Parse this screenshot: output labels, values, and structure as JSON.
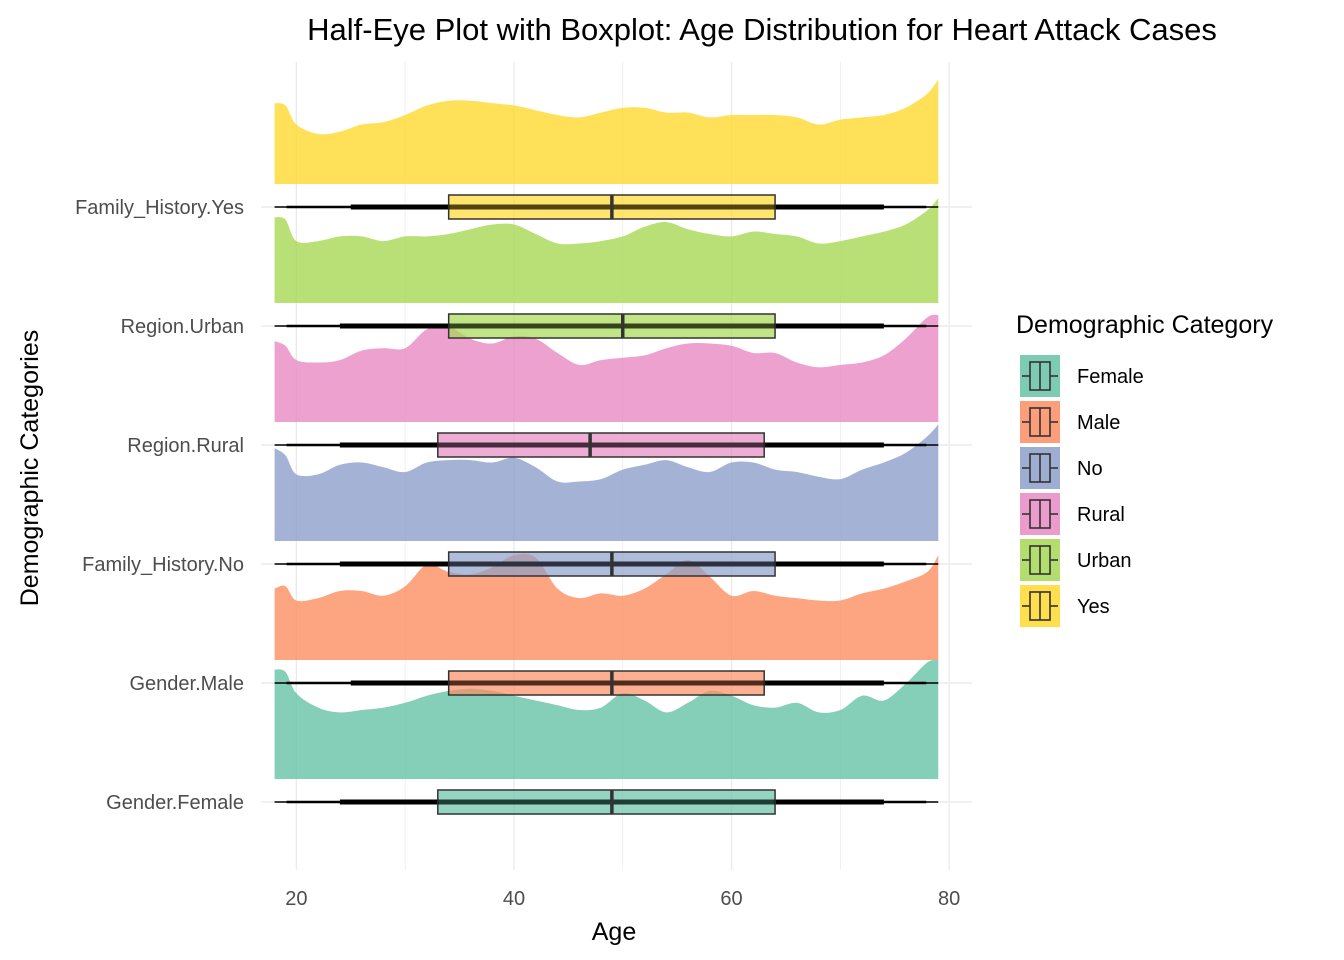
{
  "chart_data": {
    "type": "half-eye + boxplot",
    "title": "Half-Eye Plot with Boxplot: Age Distribution for Heart Attack Cases",
    "xlabel": "Age",
    "ylabel": "Demographic Categories",
    "xlim": [
      18,
      79
    ],
    "xticks": [
      20,
      40,
      60,
      80
    ],
    "grid": true,
    "legend": {
      "title": "Demographic Category",
      "placement": "right",
      "entries": [
        {
          "label": "Female",
          "color": "#66C2A5"
        },
        {
          "label": "Male",
          "color": "#FC8D62"
        },
        {
          "label": "No",
          "color": "#8DA0CB"
        },
        {
          "label": "Rural",
          "color": "#E78AC3"
        },
        {
          "label": "Urban",
          "color": "#A6D854"
        },
        {
          "label": "Yes",
          "color": "#FFD92F"
        }
      ]
    },
    "density_x": [
      18,
      19,
      20,
      22,
      24,
      26,
      28,
      30,
      32,
      34,
      36,
      38,
      40,
      42,
      44,
      46,
      48,
      50,
      52,
      54,
      56,
      58,
      60,
      62,
      64,
      66,
      68,
      70,
      72,
      74,
      76,
      78,
      79
    ],
    "series": [
      {
        "category": "Gender.Female",
        "legend": "Female",
        "color": "#66C2A5",
        "box": {
          "min": 18,
          "q1": 33,
          "median": 49,
          "q3": 64,
          "max": 79,
          "inner_lo": 24,
          "inner_hi": 74
        },
        "density": [
          0.92,
          0.9,
          0.72,
          0.6,
          0.56,
          0.58,
          0.6,
          0.64,
          0.7,
          0.74,
          0.76,
          0.74,
          0.7,
          0.66,
          0.62,
          0.58,
          0.6,
          0.72,
          0.66,
          0.56,
          0.64,
          0.74,
          0.7,
          0.62,
          0.6,
          0.64,
          0.56,
          0.58,
          0.7,
          0.66,
          0.8,
          0.98,
          1.0
        ]
      },
      {
        "category": "Gender.Male",
        "legend": "Male",
        "color": "#FC8D62",
        "box": {
          "min": 18,
          "q1": 34,
          "median": 49,
          "q3": 63,
          "max": 79,
          "inner_lo": 25,
          "inner_hi": 74
        },
        "density": [
          0.6,
          0.62,
          0.5,
          0.52,
          0.58,
          0.58,
          0.54,
          0.62,
          0.8,
          0.74,
          0.72,
          0.78,
          0.88,
          0.86,
          0.6,
          0.52,
          0.56,
          0.54,
          0.6,
          0.72,
          0.84,
          0.7,
          0.54,
          0.58,
          0.54,
          0.52,
          0.5,
          0.5,
          0.56,
          0.6,
          0.66,
          0.74,
          0.88
        ]
      },
      {
        "category": "Family_History.No",
        "legend": "No",
        "color": "#8DA0CB",
        "box": {
          "min": 18,
          "q1": 34,
          "median": 49,
          "q3": 64,
          "max": 79,
          "inner_lo": 24,
          "inner_hi": 74
        },
        "density": [
          0.78,
          0.72,
          0.56,
          0.56,
          0.64,
          0.66,
          0.62,
          0.58,
          0.66,
          0.68,
          0.68,
          0.66,
          0.7,
          0.62,
          0.5,
          0.5,
          0.52,
          0.6,
          0.64,
          0.68,
          0.62,
          0.58,
          0.66,
          0.66,
          0.6,
          0.58,
          0.54,
          0.52,
          0.6,
          0.66,
          0.74,
          0.88,
          0.98
        ]
      },
      {
        "category": "Region.Rural",
        "legend": "Rural",
        "color": "#E78AC3",
        "box": {
          "min": 18,
          "q1": 33,
          "median": 47,
          "q3": 63,
          "max": 79,
          "inner_lo": 24,
          "inner_hi": 74
        },
        "density": [
          0.68,
          0.64,
          0.52,
          0.5,
          0.52,
          0.6,
          0.62,
          0.62,
          0.78,
          0.8,
          0.7,
          0.66,
          0.72,
          0.7,
          0.58,
          0.48,
          0.52,
          0.54,
          0.56,
          0.62,
          0.66,
          0.66,
          0.64,
          0.58,
          0.58,
          0.5,
          0.46,
          0.48,
          0.5,
          0.56,
          0.7,
          0.88,
          0.9
        ]
      },
      {
        "category": "Region.Urban",
        "legend": "Urban",
        "color": "#A6D854",
        "box": {
          "min": 18,
          "q1": 34,
          "median": 50,
          "q3": 64,
          "max": 79,
          "inner_lo": 24,
          "inner_hi": 74
        },
        "density": [
          0.72,
          0.7,
          0.52,
          0.52,
          0.56,
          0.56,
          0.52,
          0.56,
          0.56,
          0.58,
          0.62,
          0.66,
          0.66,
          0.58,
          0.5,
          0.5,
          0.52,
          0.56,
          0.64,
          0.68,
          0.62,
          0.58,
          0.56,
          0.6,
          0.58,
          0.56,
          0.5,
          0.52,
          0.56,
          0.6,
          0.66,
          0.78,
          0.88
        ]
      },
      {
        "category": "Family_History.Yes",
        "legend": "Yes",
        "color": "#FFD92F",
        "box": {
          "min": 18,
          "q1": 34,
          "median": 49,
          "q3": 64,
          "max": 79,
          "inner_lo": 25,
          "inner_hi": 74
        },
        "density": [
          0.68,
          0.66,
          0.5,
          0.42,
          0.44,
          0.5,
          0.52,
          0.58,
          0.66,
          0.7,
          0.7,
          0.68,
          0.66,
          0.62,
          0.58,
          0.56,
          0.6,
          0.64,
          0.64,
          0.6,
          0.6,
          0.56,
          0.58,
          0.58,
          0.58,
          0.56,
          0.5,
          0.54,
          0.56,
          0.58,
          0.64,
          0.76,
          0.88
        ]
      }
    ]
  }
}
